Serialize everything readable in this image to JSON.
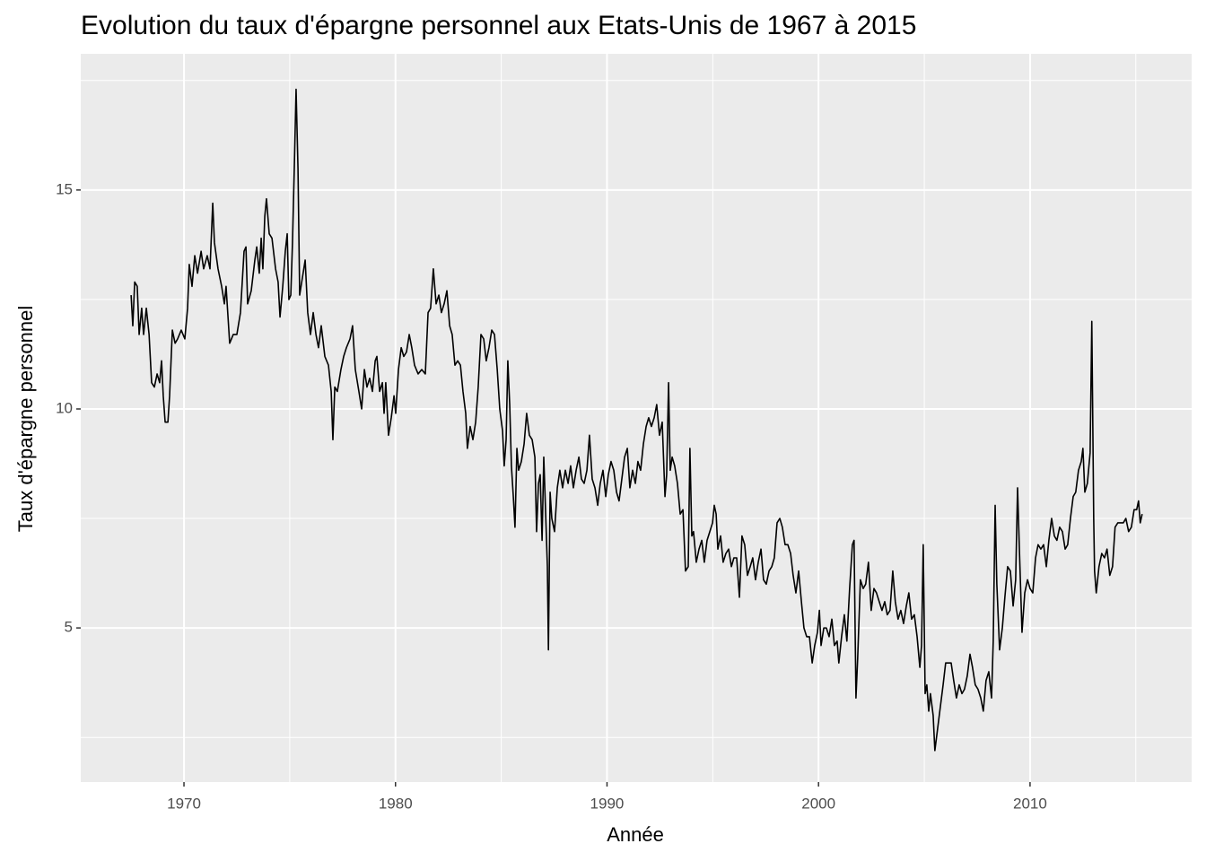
{
  "chart_data": {
    "type": "line",
    "title": "Evolution du taux d'épargne personnel aux Etats-Unis de 1967 à 2015",
    "x_label": "Année",
    "y_label": "Taux d'épargne personnel",
    "color": "#000000",
    "grid": true,
    "xlim": [
      1965.12,
      2017.64
    ],
    "xticks": [
      1970,
      1980,
      1990,
      2000,
      2010
    ],
    "xminor": [
      1975,
      1985,
      1995,
      2005,
      2015
    ],
    "ylim": [
      1.48,
      18.11
    ],
    "yticks": [
      5,
      10,
      15
    ],
    "yminor": [
      2.5,
      7.5,
      12.5,
      17.5
    ],
    "x": [
      1967.5,
      1967.58,
      1967.67,
      1967.79,
      1967.88,
      1968.0,
      1968.09,
      1968.22,
      1968.35,
      1968.47,
      1968.6,
      1968.73,
      1968.85,
      1968.94,
      1969.02,
      1969.11,
      1969.24,
      1969.32,
      1969.45,
      1969.58,
      1969.7,
      1969.87,
      1970.04,
      1970.17,
      1970.25,
      1970.38,
      1970.51,
      1970.64,
      1970.81,
      1970.93,
      1971.1,
      1971.23,
      1971.36,
      1971.44,
      1971.61,
      1971.78,
      1971.91,
      1971.99,
      1972.16,
      1972.33,
      1972.5,
      1972.67,
      1972.84,
      1972.93,
      1973.01,
      1973.18,
      1973.35,
      1973.44,
      1973.56,
      1973.65,
      1973.73,
      1973.82,
      1973.9,
      1974.03,
      1974.16,
      1974.33,
      1974.45,
      1974.54,
      1974.67,
      1974.79,
      1974.88,
      1974.96,
      1975.05,
      1975.13,
      1975.22,
      1975.3,
      1975.39,
      1975.47,
      1975.6,
      1975.73,
      1975.85,
      1975.98,
      1976.11,
      1976.24,
      1976.36,
      1976.49,
      1976.66,
      1976.83,
      1976.96,
      1977.04,
      1977.13,
      1977.25,
      1977.42,
      1977.55,
      1977.68,
      1977.85,
      1977.97,
      1978.1,
      1978.27,
      1978.4,
      1978.53,
      1978.65,
      1978.78,
      1978.91,
      1979.04,
      1979.12,
      1979.25,
      1979.38,
      1979.46,
      1979.54,
      1979.67,
      1979.8,
      1979.93,
      1980.01,
      1980.14,
      1980.27,
      1980.39,
      1980.52,
      1980.65,
      1980.77,
      1980.9,
      1981.07,
      1981.24,
      1981.41,
      1981.54,
      1981.66,
      1981.79,
      1981.92,
      1982.05,
      1982.17,
      1982.3,
      1982.43,
      1982.56,
      1982.68,
      1982.81,
      1982.94,
      1983.07,
      1983.19,
      1983.32,
      1983.4,
      1983.53,
      1983.66,
      1983.79,
      1983.91,
      1984.04,
      1984.17,
      1984.29,
      1984.42,
      1984.55,
      1984.68,
      1984.81,
      1984.93,
      1985.06,
      1985.14,
      1985.23,
      1985.31,
      1985.4,
      1985.48,
      1985.57,
      1985.65,
      1985.74,
      1985.82,
      1985.95,
      1986.08,
      1986.2,
      1986.33,
      1986.46,
      1986.59,
      1986.67,
      1986.76,
      1986.84,
      1986.93,
      1987.01,
      1987.1,
      1987.18,
      1987.23,
      1987.31,
      1987.39,
      1987.52,
      1987.65,
      1987.77,
      1987.9,
      1988.03,
      1988.16,
      1988.28,
      1988.41,
      1988.54,
      1988.67,
      1988.79,
      1988.92,
      1989.05,
      1989.17,
      1989.3,
      1989.43,
      1989.56,
      1989.68,
      1989.81,
      1989.94,
      1990.06,
      1990.19,
      1990.32,
      1990.45,
      1990.57,
      1990.7,
      1990.83,
      1990.96,
      1991.08,
      1991.21,
      1991.34,
      1991.46,
      1991.59,
      1991.72,
      1991.85,
      1991.97,
      1992.1,
      1992.23,
      1992.35,
      1992.48,
      1992.61,
      1992.74,
      1992.82,
      1992.91,
      1992.99,
      1993.08,
      1993.2,
      1993.33,
      1993.46,
      1993.59,
      1993.71,
      1993.84,
      1993.92,
      1994.01,
      1994.09,
      1994.22,
      1994.35,
      1994.48,
      1994.6,
      1994.73,
      1994.86,
      1994.99,
      1995.07,
      1995.16,
      1995.24,
      1995.37,
      1995.49,
      1995.62,
      1995.75,
      1995.88,
      1996.0,
      1996.13,
      1996.26,
      1996.38,
      1996.51,
      1996.64,
      1996.77,
      1996.89,
      1997.02,
      1997.15,
      1997.28,
      1997.4,
      1997.53,
      1997.66,
      1997.79,
      1997.91,
      1998.04,
      1998.17,
      1998.29,
      1998.42,
      1998.55,
      1998.68,
      1998.8,
      1998.93,
      1999.06,
      1999.19,
      1999.31,
      1999.44,
      1999.57,
      1999.7,
      1999.82,
      1999.95,
      2000.04,
      2000.12,
      2000.25,
      2000.37,
      2000.5,
      2000.63,
      2000.75,
      2000.88,
      2000.96,
      2001.09,
      2001.22,
      2001.34,
      2001.47,
      2001.6,
      2001.68,
      2001.77,
      2001.85,
      2001.98,
      2002.11,
      2002.23,
      2002.36,
      2002.49,
      2002.62,
      2002.74,
      2002.87,
      2003.0,
      2003.13,
      2003.25,
      2003.38,
      2003.51,
      2003.63,
      2003.76,
      2003.89,
      2004.02,
      2004.15,
      2004.27,
      2004.4,
      2004.53,
      2004.66,
      2004.79,
      2004.87,
      2004.95,
      2005.04,
      2005.12,
      2005.21,
      2005.29,
      2005.42,
      2005.5,
      2005.63,
      2005.76,
      2005.89,
      2006.01,
      2006.14,
      2006.27,
      2006.39,
      2006.52,
      2006.65,
      2006.78,
      2006.9,
      2007.03,
      2007.16,
      2007.28,
      2007.41,
      2007.54,
      2007.67,
      2007.79,
      2007.92,
      2008.05,
      2008.18,
      2008.26,
      2008.35,
      2008.43,
      2008.56,
      2008.69,
      2008.81,
      2008.94,
      2009.07,
      2009.2,
      2009.32,
      2009.41,
      2009.49,
      2009.62,
      2009.75,
      2009.88,
      2010.0,
      2010.13,
      2010.26,
      2010.38,
      2010.51,
      2010.64,
      2010.77,
      2010.89,
      2011.02,
      2011.15,
      2011.27,
      2011.4,
      2011.53,
      2011.66,
      2011.78,
      2011.91,
      2012.04,
      2012.16,
      2012.29,
      2012.42,
      2012.5,
      2012.59,
      2012.71,
      2012.84,
      2012.92,
      2013.01,
      2013.05,
      2013.13,
      2013.26,
      2013.39,
      2013.52,
      2013.64,
      2013.77,
      2013.9,
      2014.02,
      2014.15,
      2014.28,
      2014.41,
      2014.53,
      2014.66,
      2014.79,
      2014.92,
      2015.04,
      2015.13,
      2015.21,
      2015.3
    ],
    "values": [
      12.6,
      11.9,
      12.9,
      12.8,
      11.7,
      12.3,
      11.7,
      12.3,
      11.7,
      10.6,
      10.5,
      10.8,
      10.6,
      11.1,
      10.3,
      9.7,
      9.7,
      10.3,
      11.8,
      11.5,
      11.6,
      11.8,
      11.6,
      12.3,
      13.3,
      12.8,
      13.5,
      13.1,
      13.6,
      13.2,
      13.5,
      13.2,
      14.7,
      13.8,
      13.2,
      12.8,
      12.4,
      12.8,
      11.5,
      11.7,
      11.7,
      12.2,
      13.6,
      13.7,
      12.4,
      12.7,
      13.4,
      13.7,
      13.1,
      13.9,
      13.2,
      14.4,
      14.8,
      14.0,
      13.9,
      13.2,
      12.9,
      12.1,
      12.8,
      13.6,
      14.0,
      12.5,
      12.6,
      13.8,
      15.6,
      17.3,
      15.5,
      12.6,
      13.0,
      13.4,
      12.2,
      11.7,
      12.2,
      11.7,
      11.4,
      11.9,
      11.2,
      11.0,
      10.4,
      9.3,
      10.5,
      10.4,
      10.9,
      11.2,
      11.4,
      11.6,
      11.9,
      10.9,
      10.4,
      10.0,
      10.9,
      10.5,
      10.7,
      10.4,
      11.1,
      11.2,
      10.4,
      10.6,
      9.9,
      10.6,
      9.4,
      9.8,
      10.3,
      9.9,
      10.9,
      11.4,
      11.2,
      11.3,
      11.7,
      11.4,
      11.0,
      10.8,
      10.9,
      10.8,
      12.2,
      12.3,
      13.2,
      12.4,
      12.6,
      12.2,
      12.4,
      12.7,
      11.9,
      11.7,
      11.0,
      11.1,
      11.0,
      10.4,
      9.9,
      9.1,
      9.6,
      9.3,
      9.7,
      10.5,
      11.7,
      11.6,
      11.1,
      11.4,
      11.8,
      11.7,
      10.9,
      10.0,
      9.5,
      8.7,
      9.3,
      11.1,
      10.1,
      8.7,
      8.0,
      7.3,
      9.1,
      8.6,
      8.8,
      9.2,
      9.9,
      9.4,
      9.3,
      8.9,
      7.2,
      8.3,
      8.5,
      7.0,
      8.9,
      7.6,
      6.4,
      4.5,
      8.1,
      7.5,
      7.2,
      8.2,
      8.6,
      8.2,
      8.6,
      8.3,
      8.7,
      8.2,
      8.6,
      8.9,
      8.4,
      8.3,
      8.6,
      9.4,
      8.4,
      8.2,
      7.8,
      8.3,
      8.6,
      8.0,
      8.5,
      8.8,
      8.6,
      8.1,
      7.9,
      8.4,
      8.9,
      9.1,
      8.2,
      8.6,
      8.3,
      8.8,
      8.6,
      9.2,
      9.6,
      9.8,
      9.6,
      9.8,
      10.1,
      9.4,
      9.7,
      8.0,
      8.5,
      10.6,
      8.6,
      8.9,
      8.7,
      8.3,
      7.6,
      7.7,
      6.3,
      6.4,
      9.1,
      7.1,
      7.2,
      6.5,
      6.8,
      7.0,
      6.5,
      7.0,
      7.2,
      7.4,
      7.8,
      7.6,
      6.8,
      7.1,
      6.5,
      6.7,
      6.8,
      6.4,
      6.6,
      6.6,
      5.7,
      7.1,
      6.9,
      6.2,
      6.4,
      6.6,
      6.1,
      6.5,
      6.8,
      6.1,
      6.0,
      6.3,
      6.4,
      6.6,
      7.4,
      7.5,
      7.3,
      6.9,
      6.9,
      6.7,
      6.2,
      5.8,
      6.3,
      5.6,
      5.0,
      4.8,
      4.8,
      4.2,
      4.6,
      4.9,
      5.4,
      4.6,
      5.0,
      5.0,
      4.8,
      5.2,
      4.6,
      4.7,
      4.2,
      4.8,
      5.3,
      4.7,
      5.9,
      6.9,
      7.0,
      3.4,
      4.3,
      6.1,
      5.9,
      6.0,
      6.5,
      5.4,
      5.9,
      5.8,
      5.6,
      5.4,
      5.6,
      5.3,
      5.4,
      6.3,
      5.6,
      5.2,
      5.4,
      5.1,
      5.5,
      5.8,
      5.2,
      5.3,
      4.8,
      4.1,
      4.6,
      6.9,
      3.5,
      3.7,
      3.1,
      3.5,
      3.0,
      2.2,
      2.7,
      3.2,
      3.7,
      4.2,
      4.2,
      4.2,
      3.8,
      3.4,
      3.7,
      3.5,
      3.6,
      3.9,
      4.4,
      4.1,
      3.7,
      3.6,
      3.4,
      3.1,
      3.8,
      4.0,
      3.4,
      4.7,
      7.8,
      6.0,
      4.5,
      5.0,
      5.7,
      6.4,
      6.3,
      5.5,
      6.1,
      8.2,
      6.9,
      4.9,
      5.8,
      6.1,
      5.9,
      5.8,
      6.6,
      6.9,
      6.8,
      6.9,
      6.4,
      7.0,
      7.5,
      7.1,
      7.0,
      7.3,
      7.2,
      6.8,
      6.9,
      7.5,
      8.0,
      8.1,
      8.6,
      8.8,
      9.1,
      8.1,
      8.3,
      9.0,
      12.0,
      7.5,
      6.3,
      5.8,
      6.4,
      6.7,
      6.6,
      6.8,
      6.2,
      6.4,
      7.3,
      7.4,
      7.4,
      7.4,
      7.5,
      7.2,
      7.3,
      7.7,
      7.7,
      7.9,
      7.4,
      7.6
    ]
  }
}
